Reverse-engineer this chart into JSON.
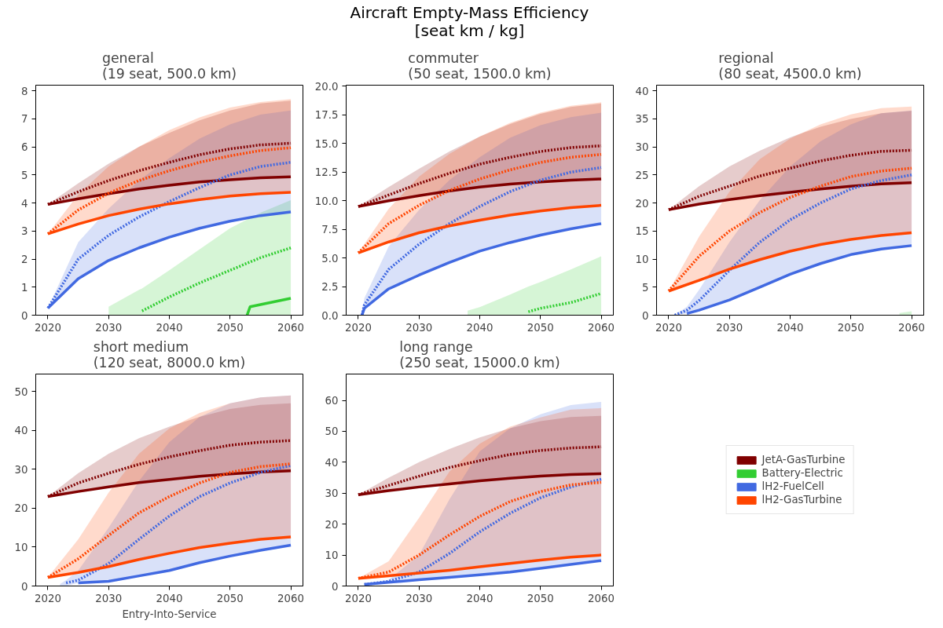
{
  "chart_data": [
    {
      "type": "other",
      "title": "Aircraft Empty-Mass Efficiency\n[seat km / kg]"
    },
    {
      "type": "line",
      "title": "general\n(19 seat, 500.0 km)",
      "x": [
        2020,
        2025,
        2030,
        2035,
        2040,
        2045,
        2050,
        2055,
        2060
      ],
      "xlim": [
        2018,
        2062
      ],
      "xticks": [
        2020,
        2030,
        2040,
        2050,
        2060
      ],
      "ylim": [
        0,
        8.2
      ],
      "yticks": [
        0,
        1,
        2,
        3,
        4,
        5,
        6,
        7,
        8
      ],
      "grid": false,
      "legend": "bottom right",
      "series": [
        {
          "name": "JetA-GasTurbine",
          "color": "#800000",
          "line_style": "solid",
          "values": [
            3.95,
            4.15,
            4.33,
            4.5,
            4.63,
            4.75,
            4.83,
            4.9,
            4.93
          ]
        },
        {
          "color": "#800000",
          "line_style": "dotted",
          "values": [
            3.95,
            4.4,
            4.8,
            5.15,
            5.45,
            5.72,
            5.93,
            6.07,
            6.13
          ],
          "lower": [
            3.95,
            4.15,
            4.33,
            4.5,
            4.63,
            4.75,
            4.83,
            4.9,
            4.93
          ],
          "upper": [
            3.95,
            4.7,
            5.4,
            6.0,
            6.5,
            6.95,
            7.3,
            7.55,
            7.65
          ]
        },
        {
          "name": "Battery-Electric",
          "color": "#32cd32",
          "line_style": "solid",
          "x": [
            2052.8,
            2053.3,
            2060
          ],
          "values": [
            0,
            0.3,
            0.6
          ]
        },
        {
          "color": "#32cd32",
          "line_style": "dotted",
          "x": [
            2030,
            2035,
            2035.5,
            2040,
            2045,
            2050,
            2055,
            2060
          ],
          "values": [
            null,
            null,
            0.15,
            0.65,
            1.15,
            1.6,
            2.05,
            2.4
          ],
          "lower": [
            0,
            0,
            0,
            0,
            0,
            0,
            0,
            0
          ],
          "upper": [
            0.3,
            0.9,
            0.95,
            1.6,
            2.35,
            3.1,
            3.65,
            4.1
          ]
        },
        {
          "name": "lH2-FuelCell",
          "color": "#4169e1",
          "line_style": "solid",
          "values": [
            0.25,
            1.3,
            1.95,
            2.4,
            2.78,
            3.1,
            3.35,
            3.55,
            3.68
          ]
        },
        {
          "color": "#4169e1",
          "line_style": "dotted",
          "values": [
            0.25,
            2.0,
            2.85,
            3.5,
            4.05,
            4.55,
            5.0,
            5.3,
            5.45
          ],
          "lower": [
            0.25,
            1.3,
            1.95,
            2.4,
            2.78,
            3.1,
            3.35,
            3.55,
            3.68
          ],
          "upper": [
            0.25,
            2.6,
            3.8,
            4.8,
            5.6,
            6.3,
            6.8,
            7.15,
            7.3
          ]
        },
        {
          "name": "lH2-GasTurbine",
          "color": "#ff4500",
          "line_style": "solid",
          "values": [
            2.9,
            3.25,
            3.55,
            3.78,
            3.97,
            4.12,
            4.25,
            4.33,
            4.38
          ]
        },
        {
          "color": "#ff4500",
          "line_style": "dotted",
          "values": [
            2.9,
            3.75,
            4.35,
            4.8,
            5.15,
            5.45,
            5.68,
            5.87,
            5.97
          ],
          "lower": [
            2.9,
            3.25,
            3.55,
            3.78,
            3.97,
            4.12,
            4.25,
            4.33,
            4.38
          ],
          "upper": [
            2.9,
            4.3,
            5.3,
            6.0,
            6.6,
            7.05,
            7.4,
            7.6,
            7.7
          ]
        }
      ]
    },
    {
      "type": "line",
      "title": "commuter\n(50 seat, 1500.0 km)",
      "x": [
        2020,
        2025,
        2030,
        2035,
        2040,
        2045,
        2050,
        2055,
        2060
      ],
      "xlim": [
        2018,
        2062
      ],
      "xticks": [
        2020,
        2030,
        2040,
        2050,
        2060
      ],
      "ylim": [
        0,
        20.1
      ],
      "yticks": [
        {
          "value": 0,
          "label": "0.0"
        },
        {
          "value": 2.5,
          "label": "2.5"
        },
        {
          "value": 5,
          "label": "5.0"
        },
        {
          "value": 7.5,
          "label": "7.5"
        },
        {
          "value": 10,
          "label": "10.0"
        },
        {
          "value": 12.5,
          "label": "12.5"
        },
        {
          "value": 15,
          "label": "15.0"
        },
        {
          "value": 17.5,
          "label": "17.5"
        },
        {
          "value": 20,
          "label": "20.0"
        }
      ],
      "grid": false,
      "series": [
        {
          "color": "#800000",
          "line_style": "solid",
          "values": [
            9.5,
            10.0,
            10.45,
            10.85,
            11.2,
            11.45,
            11.65,
            11.8,
            11.9
          ]
        },
        {
          "color": "#800000",
          "line_style": "dotted",
          "values": [
            9.5,
            10.5,
            11.5,
            12.4,
            13.2,
            13.8,
            14.3,
            14.65,
            14.8
          ],
          "lower": [
            9.5,
            10.0,
            10.45,
            10.85,
            11.2,
            11.45,
            11.65,
            11.8,
            11.9
          ],
          "upper": [
            9.5,
            11.2,
            12.8,
            14.3,
            15.6,
            16.7,
            17.6,
            18.2,
            18.5
          ]
        },
        {
          "color": "#32cd32",
          "line_style": "dotted",
          "x": [
            2038,
            2040,
            2045,
            2048,
            2050,
            2055,
            2060
          ],
          "values": [
            null,
            null,
            null,
            0.3,
            0.6,
            1.1,
            1.9
          ],
          "lower": [
            0,
            0,
            0,
            0,
            0,
            0,
            0
          ],
          "upper": [
            0.4,
            0.7,
            1.8,
            2.5,
            2.9,
            4.0,
            5.15
          ]
        },
        {
          "color": "#4169e1",
          "line_style": "solid",
          "x": [
            2020.6,
            2021,
            2025,
            2030,
            2035,
            2040,
            2045,
            2050,
            2055,
            2060
          ],
          "values": [
            0,
            0.6,
            2.3,
            3.5,
            4.6,
            5.6,
            6.35,
            7.0,
            7.55,
            8.0
          ]
        },
        {
          "color": "#4169e1",
          "line_style": "dotted",
          "x": [
            2020.6,
            2021,
            2025,
            2030,
            2035,
            2040,
            2045,
            2050,
            2055,
            2060
          ],
          "values": [
            0,
            0.9,
            4.0,
            6.2,
            8.0,
            9.5,
            10.8,
            11.8,
            12.5,
            12.9
          ],
          "lower": [
            0,
            0.6,
            2.3,
            3.5,
            4.6,
            5.6,
            6.35,
            7.0,
            7.55,
            8.0
          ],
          "upper": [
            0,
            1.5,
            6.0,
            9.2,
            11.8,
            13.8,
            15.5,
            16.6,
            17.3,
            17.7
          ]
        },
        {
          "color": "#ff4500",
          "line_style": "solid",
          "values": [
            5.45,
            6.4,
            7.2,
            7.8,
            8.3,
            8.75,
            9.1,
            9.4,
            9.6
          ]
        },
        {
          "color": "#ff4500",
          "line_style": "dotted",
          "values": [
            5.45,
            8.0,
            9.6,
            10.9,
            11.9,
            12.7,
            13.35,
            13.8,
            14.05
          ],
          "lower": [
            5.45,
            6.4,
            7.2,
            7.8,
            8.3,
            8.75,
            9.1,
            9.4,
            9.6
          ],
          "upper": [
            5.45,
            9.3,
            12.1,
            14.1,
            15.6,
            16.8,
            17.7,
            18.3,
            18.6
          ]
        }
      ]
    },
    {
      "type": "line",
      "title": "regional\n(80 seat, 4500.0 km)",
      "x": [
        2020,
        2025,
        2030,
        2035,
        2040,
        2045,
        2050,
        2055,
        2060
      ],
      "xlim": [
        2018,
        2062
      ],
      "xticks": [
        2020,
        2030,
        2040,
        2050,
        2060
      ],
      "ylim": [
        0,
        41
      ],
      "yticks": [
        0,
        5,
        10,
        15,
        20,
        25,
        30,
        35,
        40
      ],
      "grid": false,
      "series": [
        {
          "color": "#800000",
          "line_style": "solid",
          "values": [
            18.8,
            19.8,
            20.6,
            21.3,
            21.9,
            22.5,
            23.0,
            23.4,
            23.6
          ]
        },
        {
          "color": "#800000",
          "line_style": "dotted",
          "values": [
            18.8,
            21.2,
            23.0,
            24.8,
            26.2,
            27.5,
            28.5,
            29.2,
            29.4
          ],
          "lower": [
            18.8,
            19.8,
            20.6,
            21.3,
            21.9,
            22.5,
            23.0,
            23.4,
            23.6
          ],
          "upper": [
            18.8,
            23.0,
            26.5,
            29.3,
            31.7,
            33.6,
            35.0,
            36.0,
            36.4
          ]
        },
        {
          "color": "#32cd32",
          "line_style": "dotted",
          "x": [
            2058,
            2060
          ],
          "values": [
            null,
            null
          ],
          "lower": [
            0,
            0
          ],
          "upper": [
            0.4,
            0.7
          ]
        },
        {
          "color": "#4169e1",
          "line_style": "solid",
          "x": [
            2023,
            2025,
            2030,
            2035,
            2040,
            2045,
            2050,
            2055,
            2060
          ],
          "values": [
            0.3,
            0.9,
            2.7,
            5.0,
            7.3,
            9.2,
            10.8,
            11.8,
            12.4
          ]
        },
        {
          "color": "#4169e1",
          "line_style": "dotted",
          "x": [
            2021,
            2023,
            2025,
            2030,
            2035,
            2040,
            2045,
            2050,
            2055,
            2060
          ],
          "values": [
            0,
            0.9,
            2.6,
            8.0,
            13.0,
            17.0,
            20.0,
            22.5,
            24.0,
            25.0
          ],
          "lower": [
            0,
            0.3,
            0.9,
            2.7,
            5.0,
            7.3,
            9.2,
            10.8,
            11.8,
            12.4
          ],
          "upper": [
            0,
            1.5,
            4.5,
            13.0,
            20.5,
            26.5,
            31.0,
            34.0,
            36.0,
            36.5
          ]
        },
        {
          "color": "#ff4500",
          "line_style": "solid",
          "values": [
            4.3,
            6.2,
            8.2,
            9.9,
            11.4,
            12.6,
            13.5,
            14.2,
            14.7
          ]
        },
        {
          "color": "#ff4500",
          "line_style": "dotted",
          "values": [
            4.3,
            10.5,
            15.0,
            18.3,
            21.0,
            23.0,
            24.7,
            25.7,
            26.2
          ],
          "lower": [
            4.3,
            6.2,
            8.2,
            9.9,
            11.4,
            12.6,
            13.5,
            14.2,
            14.7
          ],
          "upper": [
            4.3,
            14.0,
            22.0,
            27.8,
            31.5,
            34.0,
            35.8,
            36.9,
            37.2
          ]
        }
      ]
    },
    {
      "type": "line",
      "title": "short medium\n(120 seat, 8000.0 km)",
      "xlabel": "Entry-Into-Service",
      "x": [
        2020,
        2025,
        2030,
        2035,
        2040,
        2045,
        2050,
        2055,
        2060
      ],
      "xlim": [
        2018,
        2062
      ],
      "xticks": [
        2020,
        2030,
        2040,
        2050,
        2060
      ],
      "ylim": [
        0,
        54.5
      ],
      "yticks": [
        0,
        10,
        20,
        30,
        40,
        50
      ],
      "grid": false,
      "series": [
        {
          "color": "#800000",
          "line_style": "solid",
          "values": [
            23.0,
            24.3,
            25.5,
            26.6,
            27.4,
            28.2,
            28.8,
            29.3,
            29.6
          ]
        },
        {
          "color": "#800000",
          "line_style": "dotted",
          "values": [
            23.0,
            26.5,
            29.0,
            31.3,
            33.2,
            34.8,
            36.2,
            37.0,
            37.4
          ],
          "lower": [
            23.0,
            24.3,
            25.5,
            26.6,
            27.4,
            28.2,
            28.8,
            29.3,
            29.6
          ],
          "upper": [
            23.0,
            29.0,
            34.0,
            38.0,
            41.0,
            43.5,
            45.5,
            46.6,
            47.0
          ]
        },
        {
          "color": "#4169e1",
          "line_style": "solid",
          "x": [
            2025,
            2030,
            2035,
            2040,
            2045,
            2050,
            2055,
            2060
          ],
          "values": [
            0.8,
            1.2,
            2.6,
            4.0,
            6.0,
            7.7,
            9.2,
            10.5
          ]
        },
        {
          "color": "#4169e1",
          "line_style": "dotted",
          "x": [
            2022,
            2023,
            2025,
            2030,
            2035,
            2040,
            2045,
            2050,
            2055,
            2060
          ],
          "values": [
            null,
            0.8,
            1.5,
            5.8,
            12.0,
            18.0,
            23.0,
            26.5,
            29.2,
            31.0
          ],
          "lower": [
            0,
            0,
            0.8,
            1.2,
            2.6,
            4.0,
            6.0,
            7.7,
            9.2,
            10.5
          ],
          "upper": [
            0.5,
            1.5,
            4.0,
            15.0,
            27.0,
            37.0,
            43.5,
            47.0,
            48.5,
            49.0
          ]
        },
        {
          "color": "#ff4500",
          "line_style": "solid",
          "values": [
            2.2,
            3.5,
            5.0,
            6.8,
            8.4,
            9.9,
            11.0,
            12.0,
            12.6
          ]
        },
        {
          "color": "#ff4500",
          "line_style": "dotted",
          "values": [
            2.2,
            7.0,
            13.0,
            18.8,
            23.0,
            26.5,
            29.2,
            30.7,
            31.4
          ],
          "lower": [
            2.2,
            3.5,
            5.0,
            6.8,
            8.4,
            9.9,
            11.0,
            12.0,
            12.6
          ],
          "upper": [
            2.2,
            12.0,
            24.0,
            34.0,
            40.5,
            44.5,
            47.0,
            48.5,
            49.0
          ]
        }
      ]
    },
    {
      "type": "line",
      "title": "long range\n(250 seat, 15000.0 km)",
      "x": [
        2020,
        2025,
        2030,
        2035,
        2040,
        2045,
        2050,
        2055,
        2060
      ],
      "xlim": [
        2018,
        2062
      ],
      "xticks": [
        2020,
        2030,
        2040,
        2050,
        2060
      ],
      "ylim": [
        0,
        68.5
      ],
      "yticks": [
        0,
        10,
        20,
        30,
        40,
        50,
        60
      ],
      "grid": false,
      "series": [
        {
          "color": "#800000",
          "line_style": "solid",
          "values": [
            29.5,
            30.8,
            32.0,
            33.0,
            34.0,
            34.8,
            35.5,
            36.0,
            36.3
          ]
        },
        {
          "color": "#800000",
          "line_style": "dotted",
          "values": [
            29.5,
            32.5,
            35.5,
            38.3,
            40.5,
            42.5,
            43.8,
            44.6,
            45.0
          ],
          "lower": [
            29.5,
            30.8,
            32.0,
            33.0,
            34.0,
            34.8,
            35.5,
            36.0,
            36.3
          ],
          "upper": [
            29.5,
            35.0,
            40.0,
            44.3,
            48.0,
            51.0,
            53.3,
            54.6,
            55.0
          ]
        },
        {
          "color": "#4169e1",
          "line_style": "solid",
          "x": [
            2021,
            2025,
            2030,
            2035,
            2040,
            2045,
            2050,
            2055,
            2060
          ],
          "values": [
            0.5,
            1.2,
            2.0,
            2.8,
            3.6,
            4.5,
            5.7,
            7.0,
            8.2
          ]
        },
        {
          "color": "#4169e1",
          "line_style": "dotted",
          "x": [
            2021,
            2025,
            2030,
            2035,
            2040,
            2045,
            2050,
            2055,
            2060
          ],
          "values": [
            0.5,
            1.5,
            4.5,
            10.5,
            17.5,
            23.5,
            28.5,
            32.0,
            34.5
          ],
          "lower": [
            0.5,
            1.2,
            2.0,
            2.8,
            3.6,
            4.5,
            5.7,
            7.0,
            8.2
          ],
          "upper": [
            0.5,
            2.0,
            10.0,
            28.0,
            43.5,
            51.0,
            55.5,
            58.5,
            59.5
          ]
        },
        {
          "color": "#ff4500",
          "line_style": "solid",
          "values": [
            2.5,
            3.3,
            4.2,
            5.1,
            6.2,
            7.3,
            8.4,
            9.3,
            10.0
          ]
        },
        {
          "color": "#ff4500",
          "line_style": "dotted",
          "values": [
            2.5,
            4.5,
            10.0,
            16.5,
            22.5,
            27.3,
            30.5,
            32.7,
            33.5
          ],
          "lower": [
            2.5,
            3.3,
            4.2,
            5.1,
            6.2,
            7.3,
            8.4,
            9.3,
            10.0
          ],
          "upper": [
            2.5,
            8.0,
            22.0,
            37.0,
            46.0,
            51.5,
            54.5,
            57.0,
            57.5
          ]
        }
      ]
    }
  ]
}
